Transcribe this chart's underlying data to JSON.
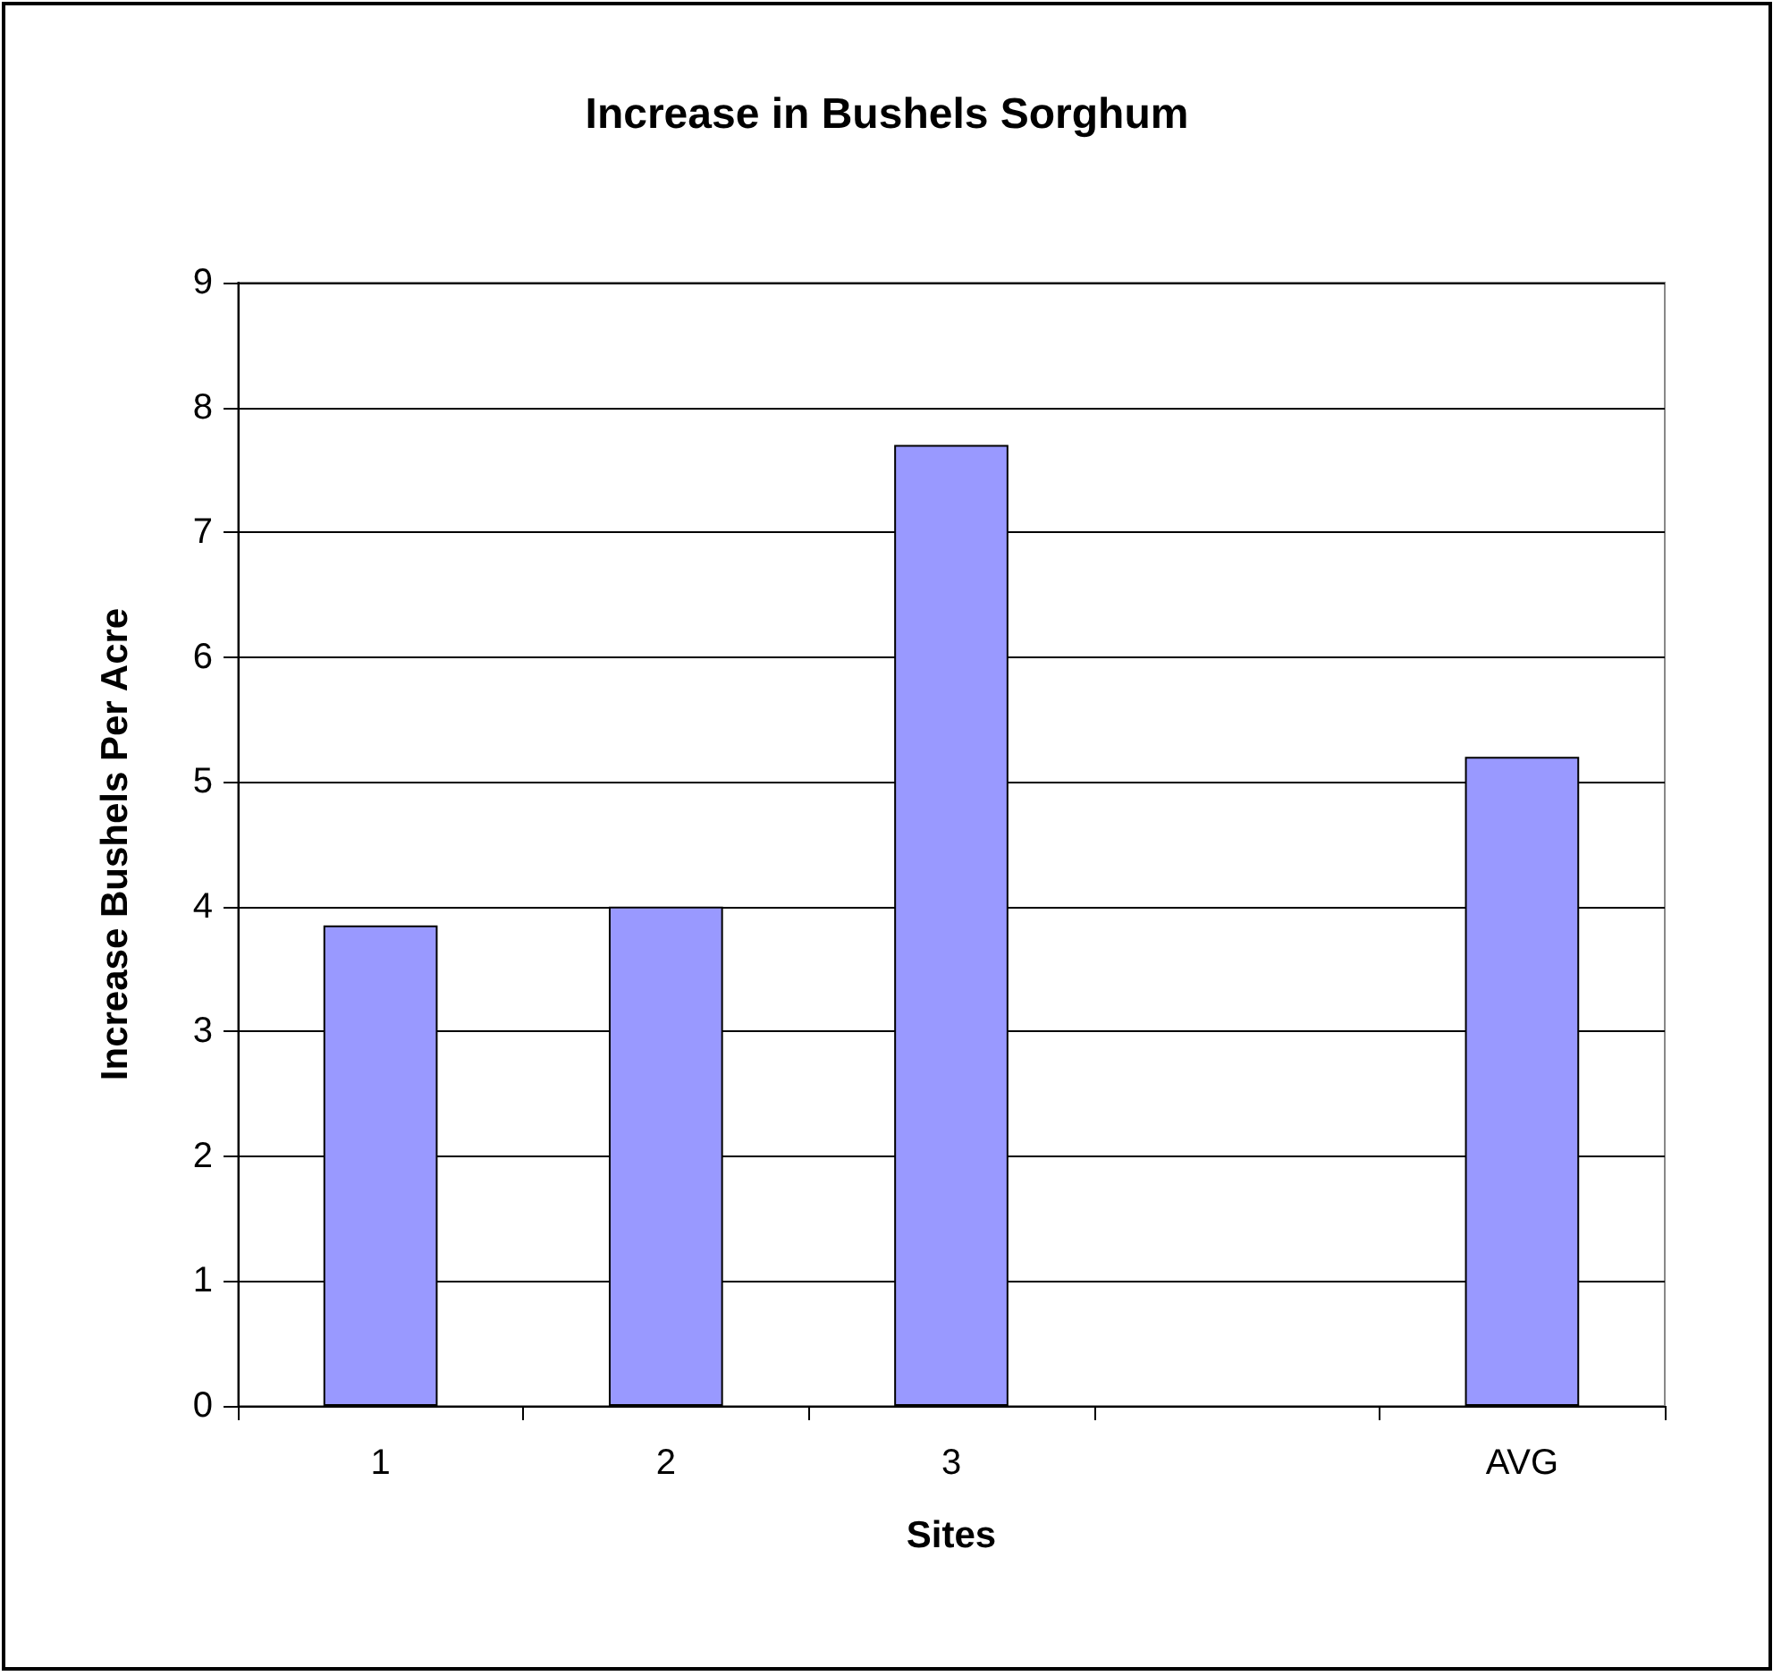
{
  "chart_data": {
    "type": "bar",
    "title": "Increase in Bushels Sorghum",
    "xlabel": "Sites",
    "ylabel": "Increase Bushels Per Acre",
    "categories": [
      "1",
      "2",
      "3",
      null,
      "AVG"
    ],
    "series": [
      {
        "color": "#9999ff",
        "values": [
          3.85,
          4.0,
          7.7,
          null,
          5.2
        ]
      }
    ],
    "ylim": [
      0,
      9
    ],
    "yticks": [
      0,
      1,
      2,
      3,
      4,
      5,
      6,
      7,
      8,
      9
    ],
    "grid": "y"
  }
}
